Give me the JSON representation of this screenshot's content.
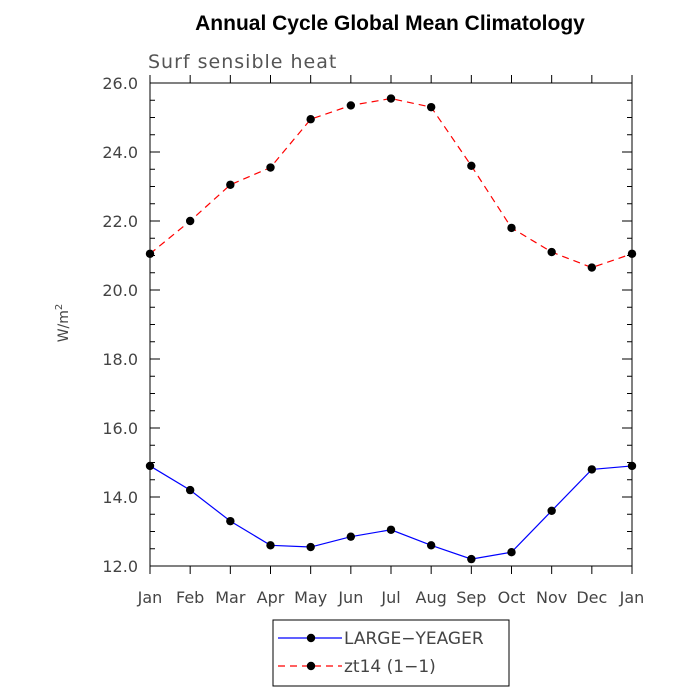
{
  "chart_data": {
    "type": "line",
    "title": "Annual Cycle Global Mean Climatology",
    "subtitle": "Surf sensible heat",
    "ylabel": "W/m",
    "ylabel_superscript": "2",
    "xlabel": "",
    "categories": [
      "Jan",
      "Feb",
      "Mar",
      "Apr",
      "May",
      "Jun",
      "Jul",
      "Aug",
      "Sep",
      "Oct",
      "Nov",
      "Dec",
      "Jan"
    ],
    "ylim": [
      12.0,
      26.0
    ],
    "yticks": [
      "12.0",
      "14.0",
      "16.0",
      "18.0",
      "20.0",
      "22.0",
      "24.0",
      "26.0"
    ],
    "grid": false,
    "legend_position": "bottom-center",
    "series": [
      {
        "name": "LARGE−YEAGER",
        "color": "#0000ff",
        "dash": "solid",
        "values": [
          14.9,
          14.2,
          13.3,
          12.6,
          12.55,
          12.85,
          13.05,
          12.6,
          12.2,
          12.4,
          13.6,
          14.8,
          14.9
        ]
      },
      {
        "name": "zt14 (1−1)",
        "color": "#ff0000",
        "dash": "dashed",
        "values": [
          21.05,
          22.0,
          23.05,
          23.55,
          24.95,
          25.35,
          25.55,
          25.3,
          23.6,
          21.8,
          21.1,
          20.65,
          21.05
        ]
      }
    ]
  }
}
